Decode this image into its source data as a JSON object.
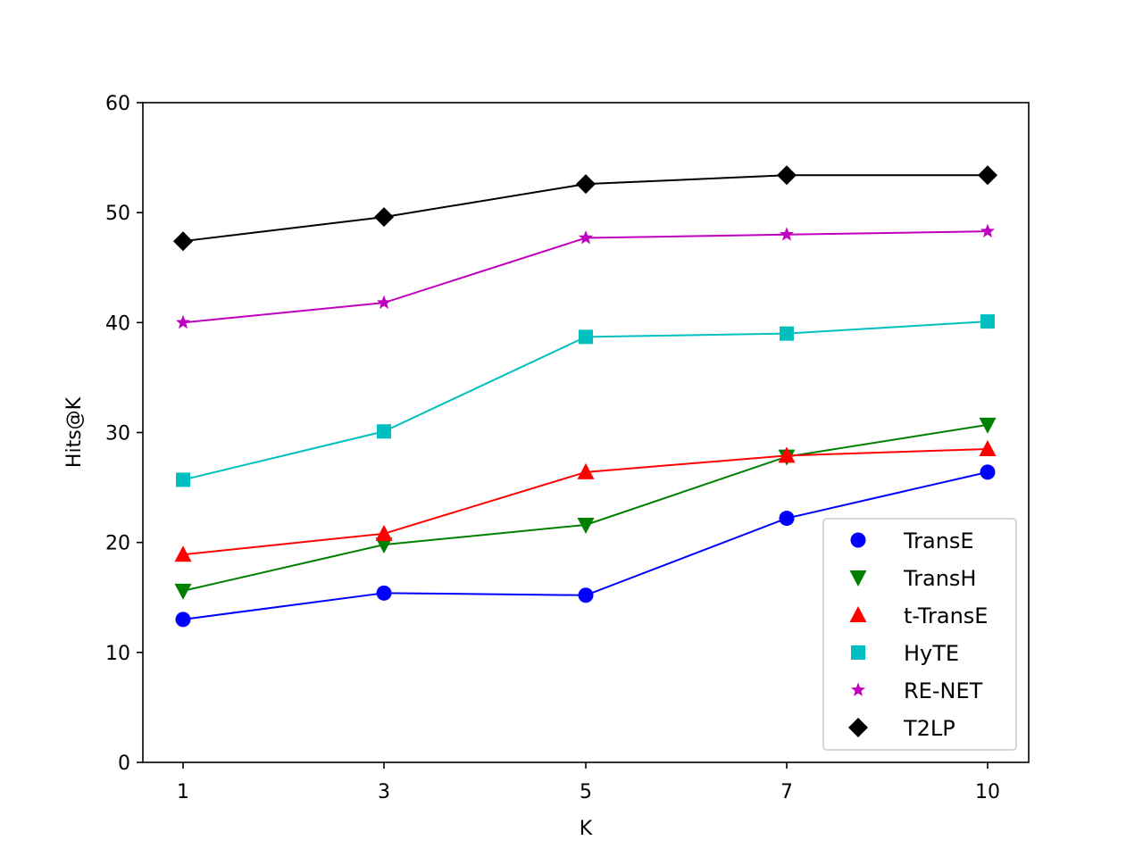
{
  "chart_data": {
    "type": "line",
    "xlabel": "K",
    "ylabel": "Hits@K",
    "categories": [
      "1",
      "3",
      "5",
      "7",
      "10"
    ],
    "ylim": [
      0,
      60
    ],
    "yticks": [
      0,
      10,
      20,
      30,
      40,
      50,
      60
    ],
    "grid": false,
    "legend_position": "bottom-right",
    "series": [
      {
        "name": "TransE",
        "color": "#0000ff",
        "marker": "circle",
        "values": [
          13.0,
          15.4,
          15.2,
          22.2,
          26.4
        ]
      },
      {
        "name": "TransH",
        "color": "#008000",
        "marker": "triangle-down",
        "values": [
          15.6,
          19.8,
          21.6,
          27.8,
          30.7
        ]
      },
      {
        "name": "t-TransE",
        "color": "#ff0000",
        "marker": "triangle-up",
        "values": [
          18.9,
          20.8,
          26.4,
          27.9,
          28.5
        ]
      },
      {
        "name": "HyTE",
        "color": "#00bfbf",
        "marker": "square",
        "values": [
          25.7,
          30.1,
          38.7,
          39.0,
          40.1
        ]
      },
      {
        "name": "RE-NET",
        "color": "#bf00bf",
        "marker": "star",
        "values": [
          40.0,
          41.8,
          47.7,
          48.0,
          48.3
        ]
      },
      {
        "name": "T2LP",
        "color": "#000000",
        "marker": "diamond",
        "values": [
          47.4,
          49.6,
          52.6,
          53.4,
          53.4
        ]
      }
    ]
  }
}
